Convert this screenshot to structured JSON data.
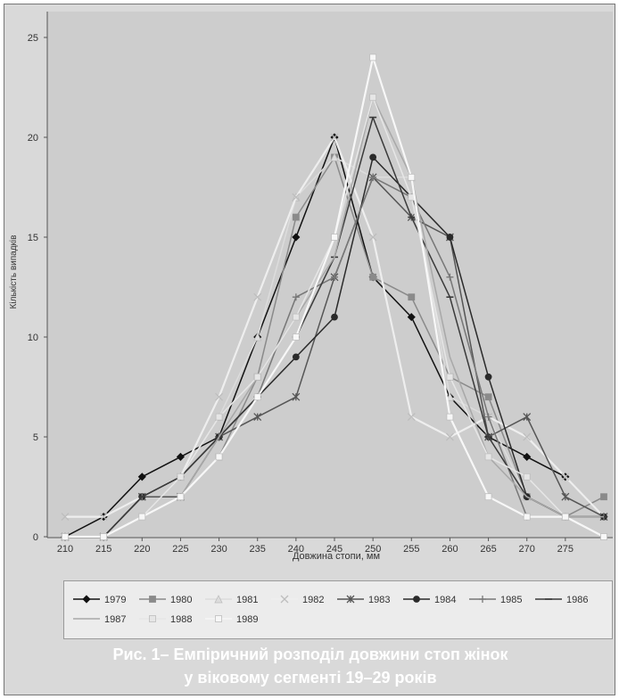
{
  "chart_data": {
    "type": "line",
    "title": "",
    "xlabel": "Довжина стопи, мм",
    "ylabel": "Кількість випадків",
    "x": [
      210,
      215,
      220,
      225,
      230,
      235,
      240,
      245,
      250,
      255,
      260,
      265,
      270,
      275,
      280
    ],
    "xticks": [
      "210",
      "215",
      "220",
      "225",
      "230",
      "235",
      "240",
      "245",
      "250",
      "255",
      "260",
      "265",
      "270",
      "275"
    ],
    "yticks": [
      "0",
      "5",
      "10",
      "15",
      "20",
      "25"
    ],
    "ylim": [
      0,
      25
    ],
    "grid": false,
    "legend_position": "bottom",
    "series": [
      {
        "name": "1979",
        "color": "#111111",
        "marker": "diamond",
        "values": [
          0,
          1,
          3,
          4,
          5,
          10,
          15,
          20,
          13,
          11,
          7,
          5,
          4,
          3,
          1
        ]
      },
      {
        "name": "1980",
        "color": "#8a8a8a",
        "marker": "square",
        "values": [
          0,
          0,
          2,
          2,
          4,
          8,
          16,
          19,
          13,
          12,
          8,
          7,
          2,
          1,
          2
        ]
      },
      {
        "name": "1981",
        "color": "#dcdcdc",
        "marker": "triangle",
        "values": [
          0,
          0,
          2,
          3,
          6,
          10,
          17,
          19,
          18,
          18,
          7,
          6,
          2,
          1,
          1
        ]
      },
      {
        "name": "1982",
        "color": "#eeeeee",
        "marker": "x",
        "values": [
          1,
          1,
          2,
          3,
          7,
          12,
          17,
          20,
          15,
          6,
          5,
          6,
          5,
          3,
          1
        ]
      },
      {
        "name": "1983",
        "color": "#555555",
        "marker": "star",
        "values": [
          0,
          0,
          2,
          2,
          5,
          6,
          7,
          13,
          18,
          16,
          15,
          5,
          6,
          2,
          1
        ]
      },
      {
        "name": "1984",
        "color": "#2a2a2a",
        "marker": "circle",
        "values": [
          0,
          0,
          2,
          3,
          5,
          7,
          9,
          11,
          19,
          17,
          15,
          8,
          2,
          1,
          1
        ]
      },
      {
        "name": "1985",
        "color": "#777777",
        "marker": "plus",
        "values": [
          0,
          0,
          2,
          3,
          5,
          7,
          12,
          13,
          18,
          17,
          13,
          6,
          1,
          1,
          1
        ]
      },
      {
        "name": "1986",
        "color": "#3a3a3a",
        "marker": "dash",
        "values": [
          0,
          0,
          2,
          3,
          5,
          7,
          10,
          14,
          21,
          16,
          12,
          5,
          2,
          1,
          1
        ]
      },
      {
        "name": "1987",
        "color": "#a8a8a8",
        "marker": "none",
        "values": [
          0,
          0,
          1,
          2,
          5,
          8,
          11,
          14,
          22,
          18,
          9,
          4,
          2,
          1,
          1
        ]
      },
      {
        "name": "1988",
        "color": "#e6e6e6",
        "marker": "square",
        "values": [
          0,
          0,
          1,
          3,
          6,
          8,
          11,
          15,
          22,
          17,
          8,
          4,
          3,
          1,
          0
        ]
      },
      {
        "name": "1989",
        "color": "#f7f7f7",
        "marker": "square",
        "values": [
          0,
          0,
          1,
          2,
          4,
          7,
          10,
          15,
          24,
          18,
          6,
          2,
          1,
          1,
          0
        ]
      }
    ]
  },
  "legend": {
    "items": [
      "1979",
      "1980",
      "1981",
      "1982",
      "1983",
      "1984",
      "1985",
      "1986",
      "1987",
      "1988",
      "1989"
    ]
  },
  "caption": {
    "line1": "Рис. 1– Емпіричний розподіл довжини стоп жінок",
    "line2": "у віковому сегменті 19–29 років"
  }
}
